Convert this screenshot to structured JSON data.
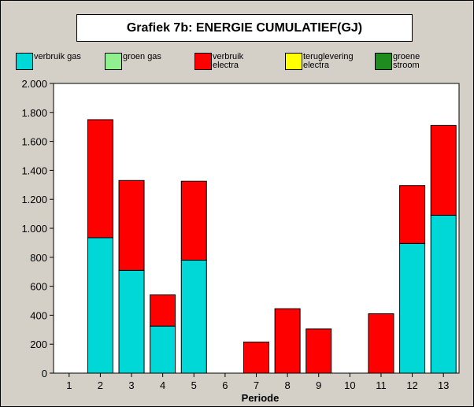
{
  "chart_data": {
    "type": "bar",
    "stacked": true,
    "title": "Grafiek 7b: ENERGIE CUMULATIEF(GJ)",
    "xlabel": "Periode",
    "ylabel": "",
    "categories": [
      "1",
      "2",
      "3",
      "4",
      "5",
      "6",
      "7",
      "8",
      "9",
      "10",
      "11",
      "12",
      "13"
    ],
    "ylim": [
      0,
      2000
    ],
    "yticks": [
      0,
      200,
      400,
      600,
      800,
      1000,
      1200,
      1400,
      1600,
      1800,
      2000
    ],
    "ytick_labels": [
      "0",
      "200",
      "400",
      "600",
      "800",
      "1.000",
      "1.200",
      "1.400",
      "1.600",
      "1.800",
      "2.000"
    ],
    "grid": false,
    "legend_position": "top",
    "series": [
      {
        "name": "verbruik gas",
        "color": "#00d8d8",
        "values": [
          0,
          935,
          710,
          325,
          780,
          0,
          0,
          0,
          0,
          0,
          0,
          895,
          1090
        ]
      },
      {
        "name": "groen gas",
        "color": "#90f090",
        "values": [
          0,
          0,
          0,
          0,
          0,
          0,
          0,
          0,
          0,
          0,
          0,
          0,
          0
        ]
      },
      {
        "name": "verbruik electra",
        "color": "#ff0000",
        "values": [
          0,
          815,
          620,
          215,
          545,
          0,
          215,
          445,
          305,
          0,
          410,
          400,
          620
        ]
      },
      {
        "name": "teruglevering electra",
        "color": "#ffff00",
        "values": [
          0,
          0,
          0,
          0,
          0,
          0,
          0,
          0,
          0,
          0,
          0,
          0,
          0
        ]
      },
      {
        "name": "groene stroom",
        "color": "#1e8c1e",
        "values": [
          0,
          0,
          0,
          0,
          0,
          0,
          0,
          0,
          0,
          0,
          0,
          0,
          0
        ]
      }
    ]
  }
}
